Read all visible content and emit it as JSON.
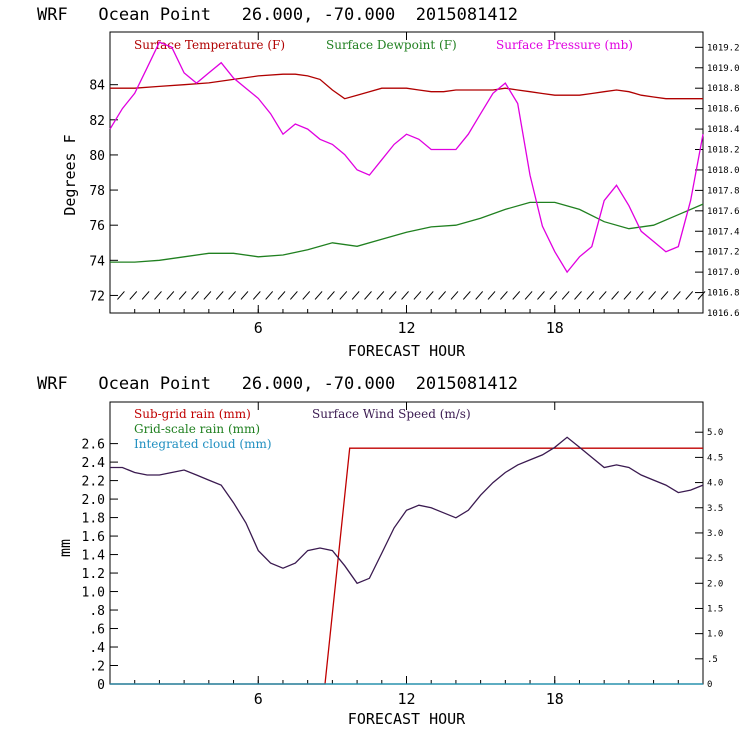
{
  "chart_data": [
    {
      "type": "line",
      "title": "WRF   Ocean Point   26.000, -70.000  2015081412",
      "xlabel": "FORECAST HOUR",
      "ylabel": "Degrees F",
      "xlim": [
        0,
        24
      ],
      "xticks": [
        "6",
        "12",
        "18"
      ],
      "ylim": [
        71,
        87
      ],
      "yticks": [
        "72",
        "74",
        "76",
        "78",
        "80",
        "82",
        "84"
      ],
      "y2lim": [
        1016.6,
        1019.35
      ],
      "y2ticks": [
        "1016.6",
        "1016.8",
        "1017.0",
        "1017.2",
        "1017.4",
        "1017.6",
        "1017.8",
        "1018.0",
        "1018.2",
        "1018.4",
        "1018.6",
        "1018.8",
        "1019.0",
        "1019.2"
      ],
      "grid": false,
      "legend": "top",
      "series": [
        {
          "name": "Surface Temperature (F)",
          "color": "#b00000",
          "axis": "left",
          "x": [
            0,
            1,
            2,
            3,
            4,
            5,
            6,
            7,
            7.5,
            8,
            8.5,
            9,
            9.5,
            10,
            10.5,
            11,
            11.5,
            12,
            12.5,
            13,
            13.5,
            14,
            14.5,
            15,
            15.5,
            16,
            16.5,
            17,
            17.5,
            18,
            18.5,
            19,
            19.5,
            20,
            20.5,
            21,
            21.5,
            22,
            22.5,
            23,
            23.5,
            24
          ],
          "values": [
            83.8,
            83.8,
            83.9,
            84.0,
            84.1,
            84.3,
            84.5,
            84.6,
            84.6,
            84.5,
            84.3,
            83.7,
            83.2,
            83.4,
            83.6,
            83.8,
            83.8,
            83.8,
            83.7,
            83.6,
            83.6,
            83.7,
            83.7,
            83.7,
            83.7,
            83.8,
            83.7,
            83.6,
            83.5,
            83.4,
            83.4,
            83.4,
            83.5,
            83.6,
            83.7,
            83.6,
            83.4,
            83.3,
            83.2,
            83.2,
            83.2,
            83.2
          ]
        },
        {
          "name": "Surface Dewpoint (F)",
          "color": "#208020",
          "axis": "left",
          "x": [
            0,
            1,
            2,
            3,
            4,
            5,
            6,
            7,
            8,
            9,
            10,
            11,
            12,
            13,
            14,
            15,
            16,
            17,
            18,
            19,
            20,
            21,
            22,
            23,
            24
          ],
          "values": [
            73.9,
            73.9,
            74.0,
            74.2,
            74.4,
            74.4,
            74.2,
            74.3,
            74.6,
            75.0,
            74.8,
            75.2,
            75.6,
            75.9,
            76.0,
            76.4,
            76.9,
            77.3,
            77.3,
            76.9,
            76.2,
            75.8,
            76.0,
            76.6,
            77.2
          ]
        },
        {
          "name": "Surface Pressure (mb)",
          "color": "#e000e0",
          "axis": "right",
          "x": [
            0,
            0.5,
            1,
            1.5,
            2,
            2.5,
            3,
            3.5,
            4,
            4.5,
            5,
            5.5,
            6,
            6.5,
            7,
            7.5,
            8,
            8.5,
            9,
            9.5,
            10,
            10.5,
            11,
            11.5,
            12,
            12.5,
            13,
            13.5,
            14,
            14.5,
            15,
            15.5,
            16,
            16.5,
            17,
            17.5,
            18,
            18.5,
            19,
            19.5,
            20,
            20.5,
            21,
            21.5,
            22,
            22.5,
            23,
            23.5,
            24
          ],
          "values": [
            1018.4,
            1018.6,
            1018.75,
            1019.0,
            1019.25,
            1019.2,
            1018.95,
            1018.85,
            1018.95,
            1019.05,
            1018.9,
            1018.8,
            1018.7,
            1018.55,
            1018.35,
            1018.45,
            1018.4,
            1018.3,
            1018.25,
            1018.15,
            1018.0,
            1017.95,
            1018.1,
            1018.25,
            1018.35,
            1018.3,
            1018.2,
            1018.2,
            1018.2,
            1018.35,
            1018.55,
            1018.75,
            1018.85,
            1018.65,
            1017.95,
            1017.45,
            1017.2,
            1017.0,
            1017.15,
            1017.25,
            1017.7,
            1017.85,
            1017.65,
            1017.4,
            1017.3,
            1017.2,
            1017.25,
            1017.7,
            1018.35
          ]
        }
      ]
    },
    {
      "type": "line",
      "title": "WRF   Ocean Point   26.000, -70.000  2015081412",
      "xlabel": "FORECAST HOUR",
      "ylabel": "mm",
      "xlim": [
        0,
        24
      ],
      "xticks": [
        "6",
        "12",
        "18"
      ],
      "ylim": [
        0,
        3.05
      ],
      "yticks": [
        "0",
        ".2",
        ".4",
        ".6",
        ".8",
        "1.0",
        "1.2",
        "1.4",
        "1.6",
        "1.8",
        "2.0",
        "2.2",
        "2.4",
        "2.6"
      ],
      "y2lim": [
        0,
        5.6
      ],
      "y2ticks": [
        "0",
        ".5",
        "1.0",
        "1.5",
        "2.0",
        "2.5",
        "3.0",
        "3.5",
        "4.0",
        "4.5",
        "5.0"
      ],
      "grid": false,
      "legend": "top",
      "series": [
        {
          "name": "Sub-grid rain (mm)",
          "color": "#c00000",
          "axis": "left",
          "x": [
            0,
            8.7,
            9.7,
            24
          ],
          "values": [
            0,
            0,
            2.55,
            2.55
          ]
        },
        {
          "name": "Grid-scale rain (mm)",
          "color": "#208020",
          "axis": "left",
          "x": [
            0,
            24
          ],
          "values": [
            0,
            0
          ]
        },
        {
          "name": "Integrated cloud (mm)",
          "color": "#1f8fc0",
          "axis": "left",
          "x": [
            0,
            24
          ],
          "values": [
            0,
            0
          ]
        },
        {
          "name": "Surface Wind Speed (m/s)",
          "color": "#3a1a50",
          "axis": "right",
          "x": [
            0,
            0.5,
            1,
            1.5,
            2,
            2.5,
            3,
            3.5,
            4,
            4.5,
            5,
            5.5,
            6,
            6.5,
            7,
            7.5,
            8,
            8.5,
            9,
            9.5,
            10,
            10.5,
            11,
            11.5,
            12,
            12.5,
            13,
            13.5,
            14,
            14.5,
            15,
            15.5,
            16,
            16.5,
            17,
            17.5,
            18,
            18.5,
            19,
            19.5,
            20,
            20.5,
            21,
            21.5,
            22,
            22.5,
            23,
            23.5,
            24
          ],
          "values": [
            4.3,
            4.3,
            4.2,
            4.15,
            4.15,
            4.2,
            4.25,
            4.15,
            4.05,
            3.95,
            3.6,
            3.2,
            2.65,
            2.4,
            2.3,
            2.4,
            2.65,
            2.7,
            2.65,
            2.35,
            2.0,
            2.1,
            2.6,
            3.1,
            3.45,
            3.55,
            3.5,
            3.4,
            3.3,
            3.45,
            3.75,
            4.0,
            4.2,
            4.35,
            4.45,
            4.55,
            4.7,
            4.9,
            4.7,
            4.5,
            4.3,
            4.35,
            4.3,
            4.15,
            4.05,
            3.95,
            3.8,
            3.85,
            3.95
          ]
        }
      ]
    }
  ]
}
